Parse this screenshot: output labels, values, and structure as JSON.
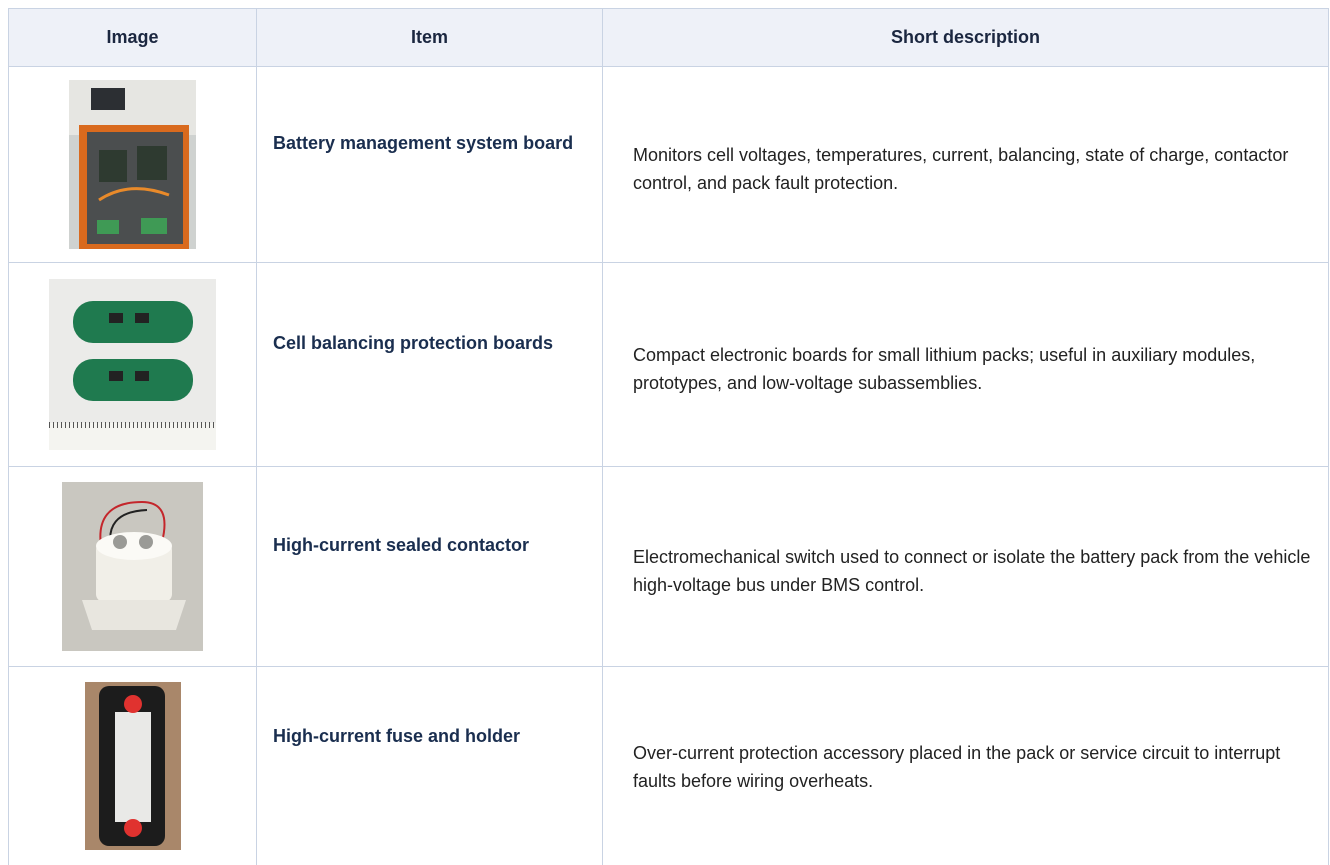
{
  "header": {
    "columns": [
      "Image",
      "Item",
      "Short description"
    ]
  },
  "table": {
    "rows": [
      {
        "item": "Battery management system board",
        "description": "Monitors cell voltages, temperatures, current, balancing, state of charge, contactor control, and pack fault protection."
      },
      {
        "item": "Cell balancing protection boards",
        "description": "Compact electronic boards for small lithium packs; useful in auxiliary modules, prototypes, and low-voltage subassemblies."
      },
      {
        "item": "High-current sealed contactor",
        "description": "Electromechanical switch used to connect or isolate the battery pack from the vehicle high-voltage bus under BMS control."
      },
      {
        "item": "High-current fuse and holder",
        "description": "Over-current protection accessory placed in the pack or service circuit to interrupt faults before wiring overheats."
      }
    ]
  }
}
